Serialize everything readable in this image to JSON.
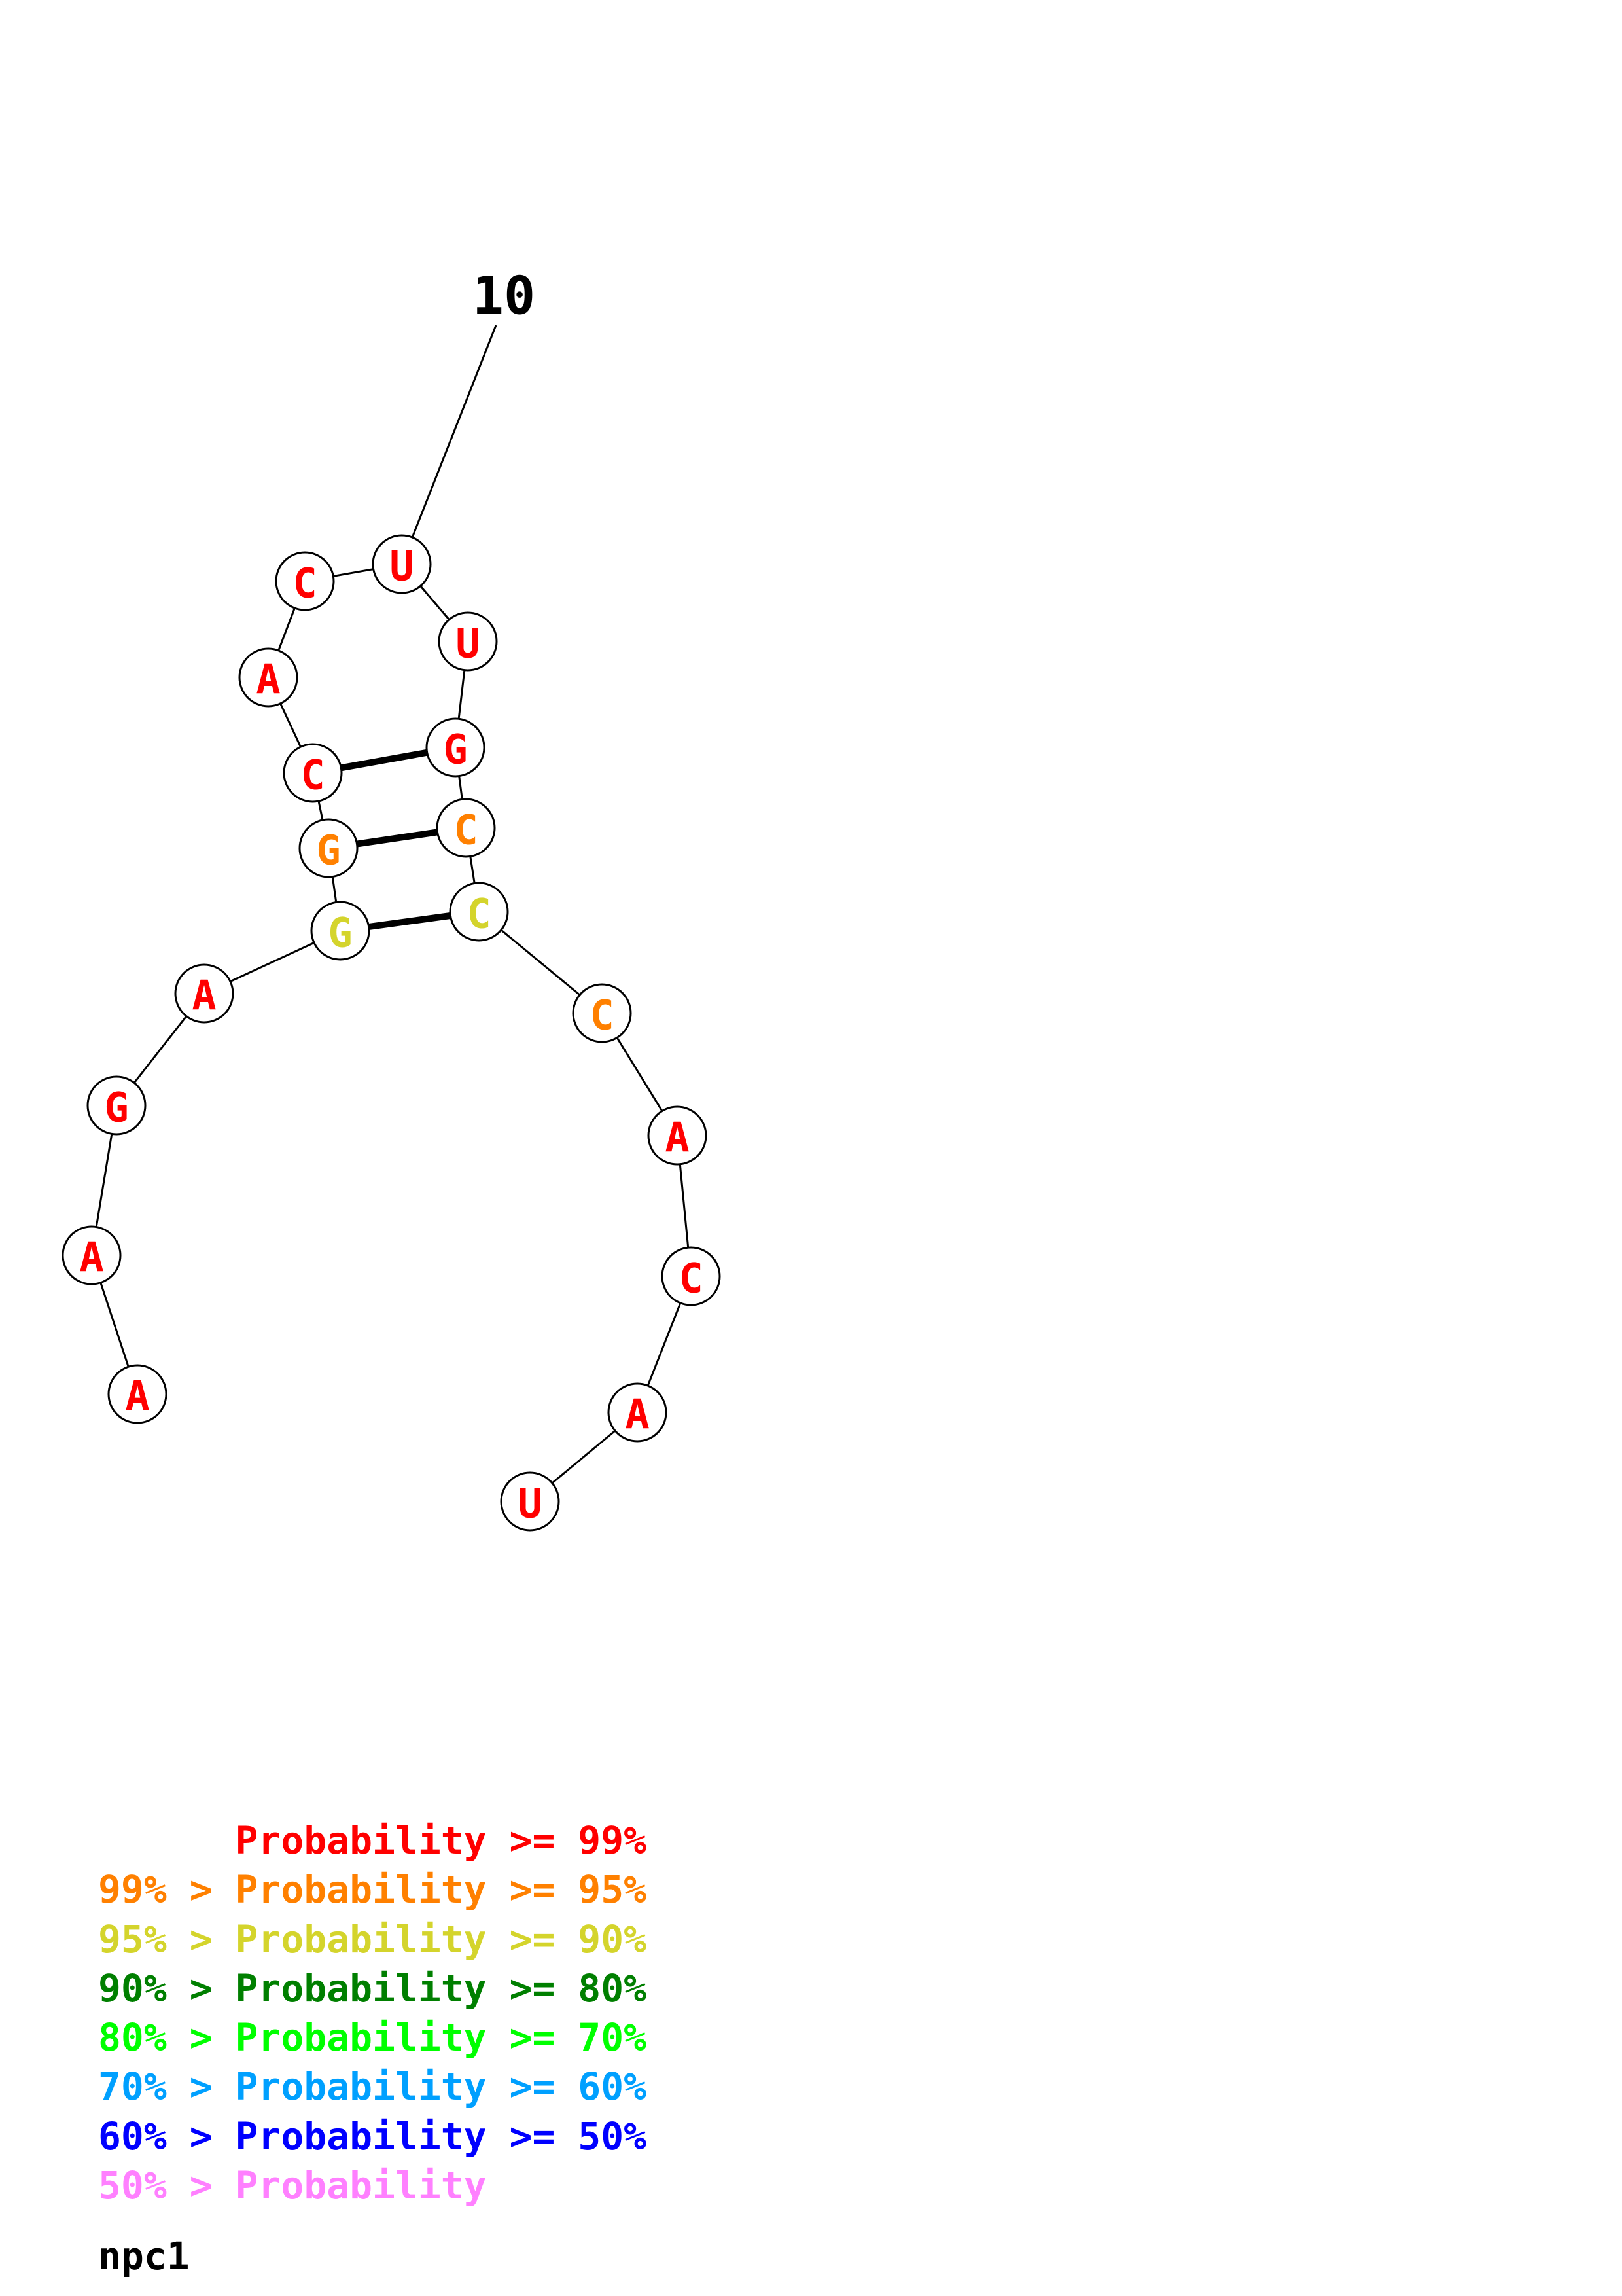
{
  "structure": {
    "name": "npc1",
    "position_marker": {
      "label": "10",
      "at_nucleotide": 10
    },
    "probability_colors": {
      "p99": "#ff0000",
      "p95": "#ff8000",
      "p90": "#d4d42c",
      "p80": "#007f00",
      "p70": "#00ff00",
      "p60": "#00a0ff",
      "p50": "#0000ff",
      "low": "#ff80ff"
    },
    "nucleotides": [
      {
        "index": 1,
        "base": "A",
        "color": "p99"
      },
      {
        "index": 2,
        "base": "A",
        "color": "p99"
      },
      {
        "index": 3,
        "base": "G",
        "color": "p99"
      },
      {
        "index": 4,
        "base": "A",
        "color": "p99"
      },
      {
        "index": 5,
        "base": "G",
        "color": "p90"
      },
      {
        "index": 6,
        "base": "G",
        "color": "p95"
      },
      {
        "index": 7,
        "base": "C",
        "color": "p99"
      },
      {
        "index": 8,
        "base": "A",
        "color": "p99"
      },
      {
        "index": 9,
        "base": "C",
        "color": "p99"
      },
      {
        "index": 10,
        "base": "U",
        "color": "p99"
      },
      {
        "index": 11,
        "base": "U",
        "color": "p99"
      },
      {
        "index": 12,
        "base": "G",
        "color": "p99"
      },
      {
        "index": 13,
        "base": "C",
        "color": "p95"
      },
      {
        "index": 14,
        "base": "C",
        "color": "p90"
      },
      {
        "index": 15,
        "base": "C",
        "color": "p95"
      },
      {
        "index": 16,
        "base": "A",
        "color": "p99"
      },
      {
        "index": 17,
        "base": "C",
        "color": "p99"
      },
      {
        "index": 18,
        "base": "A",
        "color": "p99"
      },
      {
        "index": 19,
        "base": "U",
        "color": "p99"
      }
    ],
    "base_pairs": [
      [
        5,
        14
      ],
      [
        6,
        13
      ],
      [
        7,
        12
      ]
    ]
  },
  "legend": [
    {
      "text": "      Probability >= 99%",
      "color": "p99"
    },
    {
      "text": "99% > Probability >= 95%",
      "color": "p95"
    },
    {
      "text": "95% > Probability >= 90%",
      "color": "p90"
    },
    {
      "text": "90% > Probability >= 80%",
      "color": "p80"
    },
    {
      "text": "80% > Probability >= 70%",
      "color": "p70"
    },
    {
      "text": "70% > Probability >= 60%",
      "color": "p60"
    },
    {
      "text": "60% > Probability >= 50%",
      "color": "p50"
    },
    {
      "text": "50% > Probability",
      "color": "low"
    }
  ]
}
